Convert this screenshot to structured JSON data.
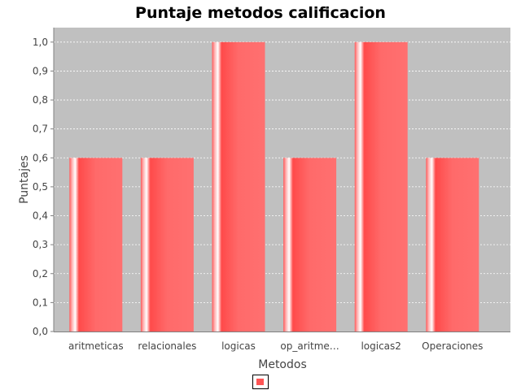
{
  "chart_data": {
    "type": "bar",
    "title": "Puntaje metodos calificacion",
    "xlabel": "Metodos",
    "ylabel": "Puntajes",
    "categories": [
      "aritmeticas",
      "relacionales",
      "logicas",
      "op_aritme…",
      "logicas2",
      "Operaciones"
    ],
    "values": [
      0.6,
      0.6,
      1.0,
      0.6,
      1.0,
      0.6
    ],
    "ylim": [
      0,
      1.05
    ],
    "yticks": [
      "0,0",
      "0,1",
      "0,2",
      "0,3",
      "0,4",
      "0,5",
      "0,6",
      "0,7",
      "0,8",
      "0,9",
      "1,0"
    ],
    "grid": true,
    "legend": "bottom",
    "colors": {
      "bar": "#ff5555",
      "plot_background": "#c0c0c0",
      "gridline": "#ffffff",
      "axis": "#808080"
    }
  }
}
